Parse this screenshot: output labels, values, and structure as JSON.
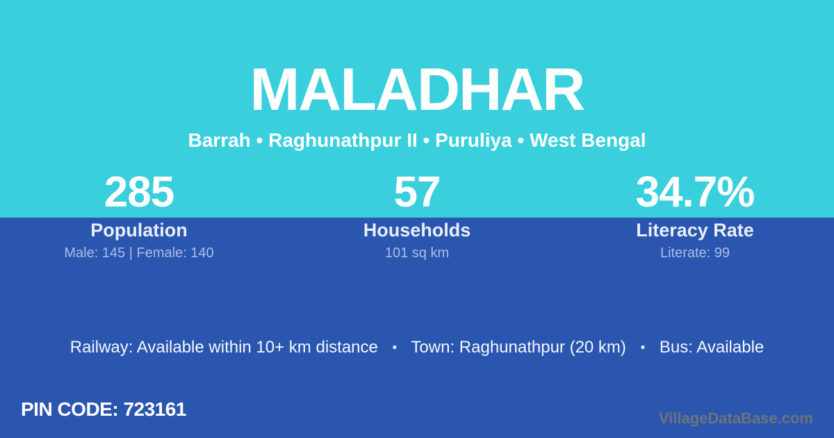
{
  "header": {
    "title": "MALADHAR",
    "subtitle": "Barrah • Raghunathpur II • Puruliya • West Bengal"
  },
  "stats": [
    {
      "value": "285",
      "label": "Population",
      "detail": "Male: 145 | Female: 140"
    },
    {
      "value": "57",
      "label": "Households",
      "detail": "101 sq km"
    },
    {
      "value": "34.7%",
      "label": "Literacy Rate",
      "detail": "Literate: 99"
    }
  ],
  "facilities": {
    "items": [
      "Railway: Available within 10+ km distance",
      "Town: Raghunathpur (20 km)",
      "Bus: Available"
    ],
    "separator": "•"
  },
  "footer": {
    "pin_code": "PIN CODE: 723161",
    "watermark": "VillageDataBase.com"
  },
  "colors": {
    "top_background": "#39CFDD",
    "bottom_background": "#2A56B0",
    "primary_text": "#FFFFFF",
    "stat_label_text": "#E9EEF7",
    "stat_detail_text": "#ABBEE3",
    "watermark_text": "#6E737A"
  }
}
